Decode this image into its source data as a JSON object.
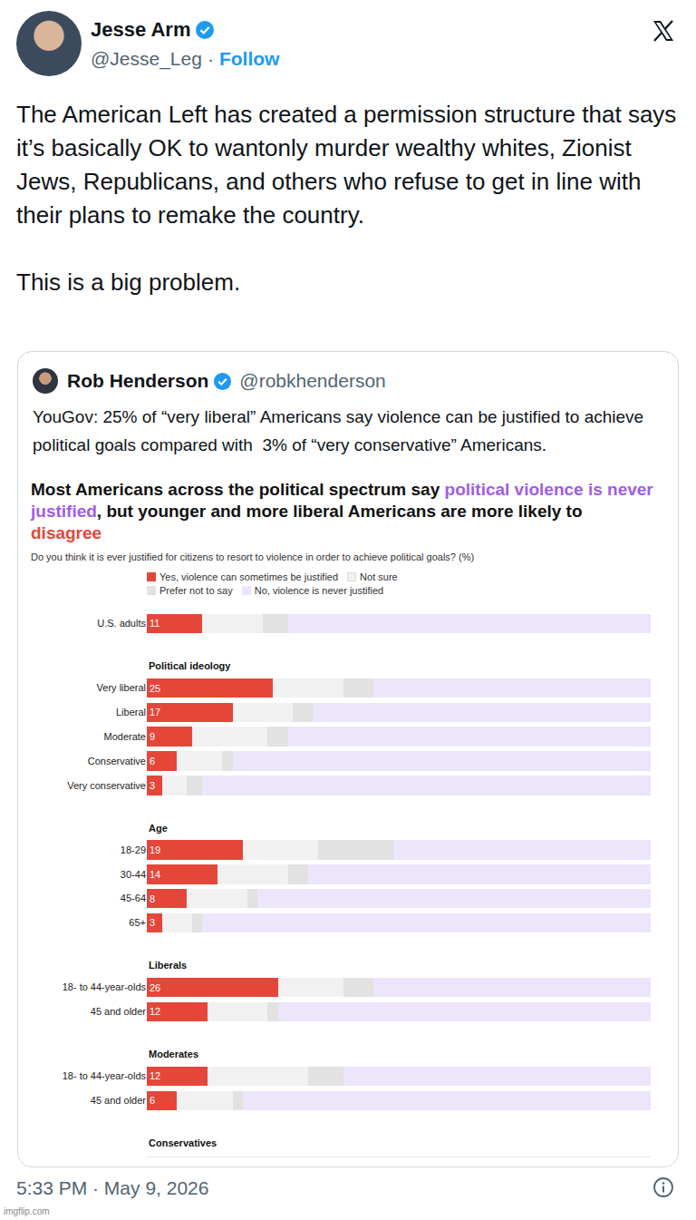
{
  "tweet": {
    "author": "Jesse Arm",
    "handle": "@Jesse_Leg",
    "separator": "·",
    "follow": "Follow",
    "text": [
      "The American Left has created a permission structure that says it’s basically OK to wantonly murder wealthy whites, Zionist Jews, Republicans, and others who refuse to get in line with their plans to remake the country.",
      "This is a big problem."
    ],
    "timestamp": "5:33 PM · May 9, 2026"
  },
  "quoted_tweet": {
    "author": "Rob Henderson",
    "handle": "@robkhenderson",
    "text": "YouGov: 25% of “very liberal” Americans say violence can be justified to achieve political goals compared with  3% of “very conservative” Americans."
  },
  "watermark": "imgflip.com",
  "chart_data": {
    "type": "bar",
    "title": [
      {
        "text": "Most Americans across the political spectrum say "
      },
      {
        "text": "political violence is never justified",
        "color": "#a05ce6"
      },
      {
        "text": ", but younger and more liberal Americans are more likely to "
      },
      {
        "text": "disagree",
        "color": "#e4473a"
      }
    ],
    "subtitle": "Do you think it is ever justified for citizens to resort to violence in order to achieve political goals? (%)",
    "orientation": "horizontal",
    "stacked": true,
    "legend": "top",
    "grid": false,
    "tick_labels": "y",
    "xlim": [
      0,
      100
    ],
    "categories": [
      "U.S. adults",
      "Very liberal",
      "Liberal",
      "Moderate",
      "Conservative",
      "Very conservative",
      "18-29",
      "30-44",
      "45-64",
      "65+",
      "18- to 44-year-olds",
      "45 and older",
      "18- to 44-year-olds",
      "45 and older"
    ],
    "groups": [
      {
        "title": "Political ideology",
        "start": 1
      },
      {
        "title": "Age",
        "start": 6
      },
      {
        "title": "Liberals",
        "start": 10
      },
      {
        "title": "Moderates",
        "start": 12
      },
      {
        "title": "Conservatives",
        "start": 14
      }
    ],
    "series": [
      {
        "name": "Yes, violence can sometimes be justified",
        "color": "#e4473a",
        "data_labels": true,
        "values": [
          11,
          25,
          17,
          9,
          6,
          3,
          19,
          14,
          8,
          3,
          26,
          12,
          12,
          6
        ]
      },
      {
        "name": "Not sure",
        "color": "#f1f1f1",
        "values": [
          12,
          14,
          12,
          15,
          9,
          5,
          15,
          14,
          12,
          6,
          13,
          12,
          20,
          11
        ]
      },
      {
        "name": "Prefer not to say",
        "color": "#e2e2e2",
        "values": [
          5,
          6,
          4,
          4,
          2,
          3,
          15,
          4,
          2,
          2,
          6,
          2,
          7,
          2
        ]
      },
      {
        "name": "No, violence is never justified",
        "color": "#ece5fb",
        "values": [
          72,
          55,
          67,
          72,
          83,
          89,
          51,
          68,
          78,
          89,
          55,
          74,
          61,
          81
        ]
      }
    ]
  }
}
